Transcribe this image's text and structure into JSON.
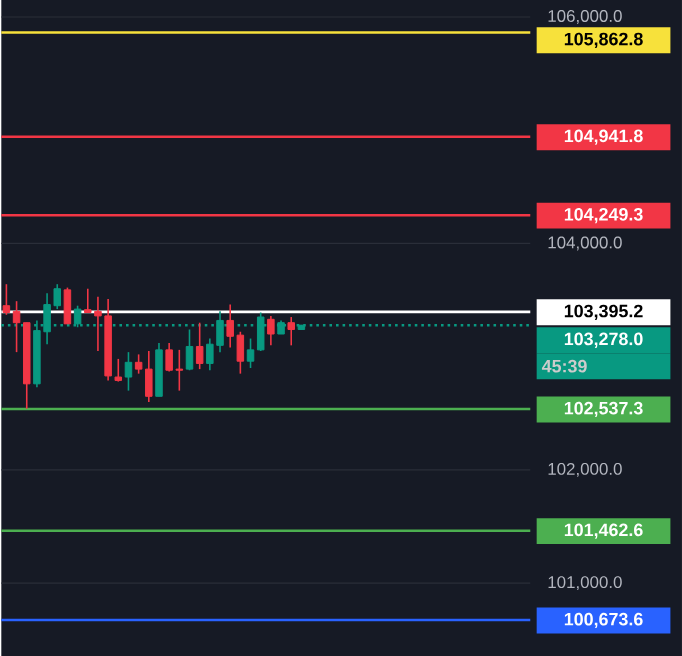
{
  "chart_data": {
    "type": "candlestick",
    "categories": [
      null,
      null,
      null,
      null,
      null,
      null,
      null,
      null,
      null,
      null,
      null,
      null,
      null,
      null,
      null,
      null,
      null,
      null,
      null,
      null,
      null,
      null,
      null,
      null,
      null,
      null,
      null,
      null,
      null,
      null,
      null,
      null,
      null,
      null,
      null,
      null,
      null,
      null,
      null,
      null,
      null,
      null,
      null,
      null,
      null,
      null,
      null,
      null,
      null,
      null,
      null,
      null
    ],
    "ohlc": [
      [
        103450,
        103640,
        103370,
        103390
      ],
      [
        103400,
        103490,
        103040,
        103300
      ],
      [
        103300,
        103300,
        102540,
        102760
      ],
      [
        102760,
        103320,
        102730,
        103230
      ],
      [
        103220,
        103560,
        103110,
        103460
      ],
      [
        103450,
        103640,
        103420,
        103600
      ],
      [
        103590,
        103610,
        103290,
        103290
      ],
      [
        103290,
        103450,
        103260,
        103420
      ],
      [
        103415,
        103600,
        103390,
        103390
      ],
      [
        103400,
        103530,
        103050,
        103360
      ],
      [
        103360,
        103510,
        102790,
        102830
      ],
      [
        102820,
        102980,
        102780,
        102790
      ],
      [
        102820,
        103040,
        102700,
        102950
      ],
      [
        102950,
        103020,
        102850,
        102890
      ],
      [
        102890,
        103050,
        102600,
        102650
      ],
      [
        102650,
        103120,
        102650,
        103060
      ],
      [
        103060,
        103120,
        102870,
        102880
      ],
      [
        102890,
        103060,
        102700,
        102880
      ],
      [
        102890,
        103240,
        102880,
        103090
      ],
      [
        103090,
        103300,
        102890,
        102940
      ],
      [
        102940,
        103160,
        102880,
        103110
      ],
      [
        103100,
        103400,
        103040,
        103320
      ],
      [
        103320,
        103460,
        103080,
        103180
      ],
      [
        103190,
        103220,
        102850,
        102960
      ],
      [
        102960,
        103160,
        102900,
        103060
      ],
      [
        103060,
        103390,
        103050,
        103350
      ],
      [
        103330,
        103360,
        103100,
        103200
      ],
      [
        103200,
        103320,
        103200,
        103300
      ],
      [
        103300,
        103350,
        103100,
        103240
      ],
      [
        103240,
        103280,
        103240,
        103278
      ],
      null,
      null,
      null,
      null,
      null,
      null,
      null,
      null,
      null,
      null,
      null,
      null,
      null,
      null,
      null,
      null,
      null,
      null,
      null,
      null,
      null,
      null
    ],
    "colors": [
      "#f23645",
      "#f23645",
      "#f23645",
      "#089981",
      "#089981",
      "#089981",
      "#f23645",
      "#089981",
      "#f23645",
      "#f23645",
      "#f23645",
      "#f23645",
      "#089981",
      "#f23645",
      "#f23645",
      "#089981",
      "#f23645",
      "#f23645",
      "#089981",
      "#f23645",
      "#089981",
      "#089981",
      "#f23645",
      "#f23645",
      "#089981",
      "#089981",
      "#f23645",
      "#089981",
      "#f23645",
      "#089981",
      null,
      null,
      null,
      null,
      null,
      null,
      null,
      null,
      null,
      null,
      null,
      null,
      null,
      null,
      null,
      null,
      null,
      null,
      null,
      null,
      null,
      null
    ],
    "ylim": [
      100350,
      106150
    ],
    "yticks": [
      {
        "value": 101000,
        "label": "101,000.0"
      },
      {
        "value": 102000,
        "label": "102,000.0"
      },
      {
        "value": 104000,
        "label": "104,000.0"
      },
      {
        "value": 106000,
        "label": "106,000.0"
      }
    ],
    "tick_labels": "y",
    "grid": "y",
    "ref_lines": [
      {
        "axis": "y",
        "value": 105862.8,
        "label": "105,862.8",
        "color": "#f7e13b"
      },
      {
        "axis": "y",
        "value": 104941.8,
        "label": "104,941.8",
        "color": "#f23645"
      },
      {
        "axis": "y",
        "value": 104249.3,
        "label": "104,249.3",
        "color": "#f23645"
      },
      {
        "axis": "y",
        "value": 103395.2,
        "label": "103,395.2",
        "color": "#ffffff"
      },
      {
        "axis": "y",
        "value": 103278.0,
        "label": "103,278.0",
        "color": "#089981",
        "line_style": "dotted"
      },
      {
        "axis": "y",
        "value": 102537.3,
        "label": "102,537.3",
        "color": "#4caf50"
      },
      {
        "axis": "y",
        "value": 101462.6,
        "label": "101,462.6",
        "color": "#4caf50"
      },
      {
        "axis": "y",
        "value": 100673.6,
        "label": "100,673.6",
        "color": "#2962ff"
      }
    ],
    "annotations": [
      "45:39"
    ]
  }
}
